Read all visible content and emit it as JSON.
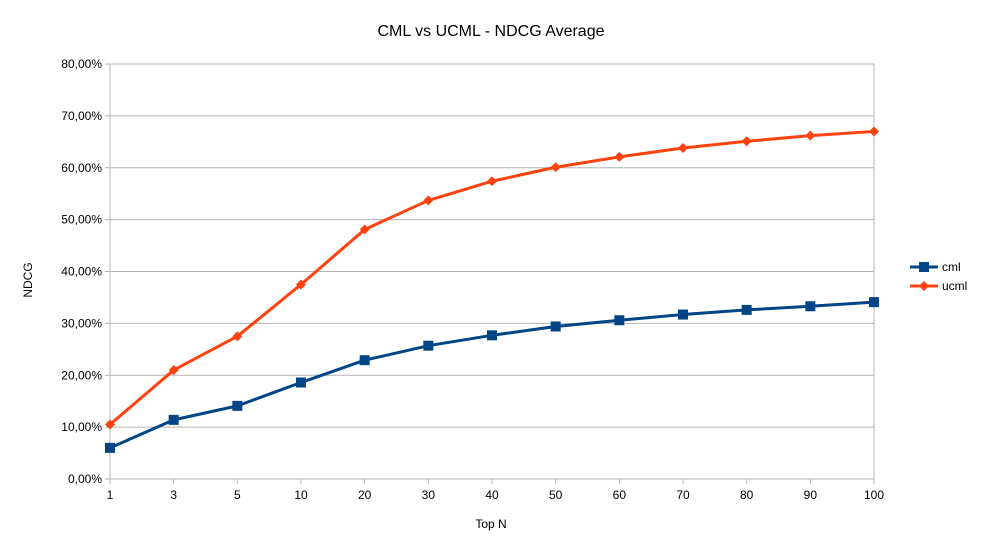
{
  "chart_data": {
    "type": "line",
    "title": "CML vs UCML - NDCG Average",
    "xlabel": "Top N",
    "ylabel": "NDCG",
    "categories": [
      "1",
      "3",
      "5",
      "10",
      "20",
      "30",
      "40",
      "50",
      "60",
      "70",
      "80",
      "90",
      "100"
    ],
    "y_tick_labels": [
      "0,00%",
      "10,00%",
      "20,00%",
      "30,00%",
      "40,00%",
      "50,00%",
      "60,00%",
      "70,00%",
      "80,00%"
    ],
    "ylim": [
      0,
      80
    ],
    "y_unit": "percent",
    "grid": "horizontal",
    "legend_position": "right",
    "series": [
      {
        "name": "cml",
        "color": "#004586",
        "marker": "square",
        "values": [
          6.0,
          11.4,
          14.1,
          18.6,
          22.9,
          25.7,
          27.7,
          29.4,
          30.6,
          31.7,
          32.6,
          33.3,
          34.1
        ]
      },
      {
        "name": "ucml",
        "color": "#ff420e",
        "marker": "diamond",
        "values": [
          10.5,
          21.0,
          27.5,
          37.5,
          48.1,
          53.7,
          57.4,
          60.1,
          62.1,
          63.8,
          65.1,
          66.2,
          67.0
        ]
      }
    ]
  }
}
